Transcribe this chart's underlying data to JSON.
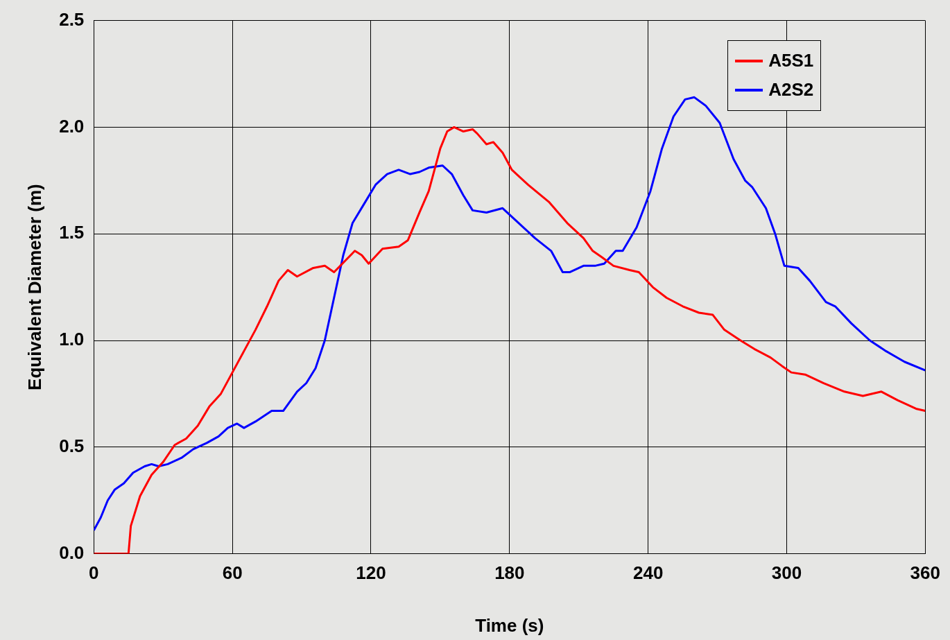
{
  "chart_data": {
    "type": "line",
    "xlabel": "Time (s)",
    "ylabel": "Equivalent Diameter (m)",
    "xlim": [
      0,
      360
    ],
    "xticks": [
      0,
      60,
      120,
      180,
      240,
      300,
      360
    ],
    "ylim": [
      0,
      2.5
    ],
    "yticks": [
      {
        "value": 0,
        "label": "0.0"
      },
      {
        "value": 0.5,
        "label": "0.5"
      },
      {
        "value": 1,
        "label": "1.0"
      },
      {
        "value": 1.5,
        "label": "1.5"
      },
      {
        "value": 2,
        "label": "2.0"
      },
      {
        "value": 2.5,
        "label": "2.5"
      }
    ],
    "grid": true,
    "legend": "top right",
    "marker": "none",
    "line_style": "solid",
    "series": [
      {
        "name": "A5S1",
        "color": "#ff0000",
        "x": [
          0,
          15,
          16,
          20,
          25,
          30,
          35,
          40,
          45,
          50,
          55,
          60,
          65,
          70,
          75,
          80,
          84,
          88,
          95,
          100,
          104,
          113,
          116,
          119,
          125,
          132,
          136,
          141,
          145,
          150,
          153,
          156,
          160,
          164,
          166,
          170,
          173,
          177,
          181,
          188,
          197,
          205,
          212,
          216,
          220,
          225,
          232,
          236,
          242,
          248,
          255,
          262,
          268,
          273,
          280,
          286,
          293,
          298,
          302,
          308,
          316,
          325,
          333,
          341,
          348,
          356,
          360
        ],
        "values": [
          0,
          0,
          0.13,
          0.27,
          0.37,
          0.43,
          0.51,
          0.54,
          0.6,
          0.69,
          0.75,
          0.85,
          0.95,
          1.05,
          1.16,
          1.28,
          1.33,
          1.3,
          1.34,
          1.35,
          1.32,
          1.42,
          1.4,
          1.36,
          1.43,
          1.44,
          1.47,
          1.6,
          1.7,
          1.9,
          1.98,
          2,
          1.98,
          1.99,
          1.97,
          1.92,
          1.93,
          1.88,
          1.8,
          1.73,
          1.65,
          1.55,
          1.48,
          1.42,
          1.39,
          1.35,
          1.33,
          1.32,
          1.25,
          1.2,
          1.16,
          1.13,
          1.12,
          1.05,
          1,
          0.96,
          0.92,
          0.88,
          0.85,
          0.84,
          0.8,
          0.76,
          0.74,
          0.76,
          0.72,
          0.68,
          0.67
        ]
      },
      {
        "name": "A2S2",
        "color": "#0000ff",
        "x": [
          0,
          3,
          6,
          9,
          13,
          17,
          22,
          25,
          28,
          32,
          38,
          43,
          49,
          54,
          58,
          62,
          65,
          70,
          77,
          82,
          88,
          92,
          96,
          100,
          104,
          108,
          112,
          117,
          122,
          127,
          132,
          137,
          141,
          145,
          151,
          155,
          160,
          164,
          170,
          177,
          184,
          191,
          198,
          203,
          206,
          212,
          217,
          221,
          226,
          229,
          235,
          241,
          246,
          251,
          256,
          260,
          265,
          271,
          277,
          282,
          285,
          291,
          295,
          299,
          305,
          310,
          317,
          321,
          328,
          336,
          343,
          351,
          360
        ],
        "values": [
          0.11,
          0.17,
          0.25,
          0.3,
          0.33,
          0.38,
          0.41,
          0.42,
          0.41,
          0.42,
          0.45,
          0.49,
          0.52,
          0.55,
          0.59,
          0.61,
          0.59,
          0.62,
          0.67,
          0.67,
          0.76,
          0.8,
          0.87,
          1,
          1.2,
          1.4,
          1.55,
          1.64,
          1.73,
          1.78,
          1.8,
          1.78,
          1.79,
          1.81,
          1.82,
          1.78,
          1.68,
          1.61,
          1.6,
          1.62,
          1.55,
          1.48,
          1.42,
          1.32,
          1.32,
          1.35,
          1.35,
          1.36,
          1.42,
          1.42,
          1.53,
          1.7,
          1.9,
          2.05,
          2.13,
          2.14,
          2.1,
          2.02,
          1.85,
          1.75,
          1.72,
          1.62,
          1.5,
          1.35,
          1.34,
          1.28,
          1.18,
          1.16,
          1.08,
          1,
          0.95,
          0.9,
          0.86
        ]
      }
    ]
  }
}
